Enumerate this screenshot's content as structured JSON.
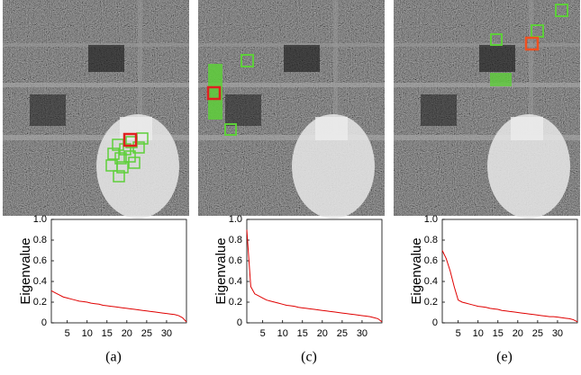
{
  "chart_data": [
    {
      "type": "line",
      "caption": "(a)",
      "y_label": "Eigenvalue",
      "color": "#e00000",
      "x": [
        1,
        2,
        3,
        4,
        5,
        6,
        7,
        8,
        9,
        10,
        11,
        12,
        13,
        14,
        15,
        16,
        17,
        18,
        19,
        20,
        21,
        22,
        23,
        24,
        25,
        26,
        27,
        28,
        29,
        30,
        31,
        32,
        33,
        34,
        35
      ],
      "values": [
        0.31,
        0.29,
        0.27,
        0.25,
        0.24,
        0.23,
        0.22,
        0.21,
        0.205,
        0.2,
        0.19,
        0.185,
        0.18,
        0.17,
        0.165,
        0.16,
        0.155,
        0.15,
        0.145,
        0.14,
        0.135,
        0.13,
        0.125,
        0.12,
        0.115,
        0.11,
        0.105,
        0.1,
        0.095,
        0.09,
        0.085,
        0.08,
        0.07,
        0.05,
        0.01
      ],
      "xlim": [
        1,
        35
      ],
      "xticks": [
        5,
        10,
        15,
        20,
        25,
        30
      ],
      "ylim": [
        0,
        1
      ],
      "yticks": [
        0,
        0.2,
        0.4,
        0.6,
        0.8,
        {
          "value": 1,
          "label": "1.0"
        }
      ]
    },
    {
      "type": "line",
      "caption": "(c)",
      "y_label": "Eigenvalue",
      "color": "#e00000",
      "x": [
        1,
        2,
        3,
        4,
        5,
        6,
        7,
        8,
        9,
        10,
        11,
        12,
        13,
        14,
        15,
        16,
        17,
        18,
        19,
        20,
        21,
        22,
        23,
        24,
        25,
        26,
        27,
        28,
        29,
        30,
        31,
        32,
        33,
        34,
        35
      ],
      "values": [
        0.9,
        0.35,
        0.28,
        0.26,
        0.24,
        0.22,
        0.21,
        0.2,
        0.19,
        0.18,
        0.17,
        0.165,
        0.16,
        0.15,
        0.145,
        0.14,
        0.135,
        0.13,
        0.125,
        0.12,
        0.115,
        0.11,
        0.105,
        0.1,
        0.095,
        0.09,
        0.085,
        0.08,
        0.075,
        0.07,
        0.065,
        0.06,
        0.05,
        0.04,
        0.01
      ],
      "xlim": [
        1,
        35
      ],
      "xticks": [
        5,
        10,
        15,
        20,
        25,
        30
      ],
      "ylim": [
        0,
        1
      ],
      "yticks": [
        0,
        0.2,
        0.4,
        0.6,
        0.8,
        {
          "value": 1,
          "label": "1.0"
        }
      ]
    },
    {
      "type": "line",
      "caption": "(e)",
      "y_label": "Eigenvalue",
      "color": "#e00000",
      "x": [
        1,
        2,
        3,
        4,
        5,
        6,
        7,
        8,
        9,
        10,
        11,
        12,
        13,
        14,
        15,
        16,
        17,
        18,
        19,
        20,
        21,
        22,
        23,
        24,
        25,
        26,
        27,
        28,
        29,
        30,
        31,
        32,
        33,
        34,
        35
      ],
      "values": [
        0.7,
        0.62,
        0.5,
        0.35,
        0.22,
        0.2,
        0.19,
        0.18,
        0.17,
        0.16,
        0.155,
        0.15,
        0.14,
        0.135,
        0.13,
        0.12,
        0.115,
        0.11,
        0.105,
        0.1,
        0.095,
        0.09,
        0.085,
        0.08,
        0.075,
        0.07,
        0.065,
        0.06,
        0.06,
        0.055,
        0.05,
        0.045,
        0.04,
        0.03,
        0.01
      ],
      "xlim": [
        1,
        35
      ],
      "xticks": [
        5,
        10,
        15,
        20,
        25,
        30
      ],
      "ylim": [
        0,
        1
      ],
      "yticks": [
        0,
        0.2,
        0.4,
        0.6,
        0.8,
        {
          "value": 1,
          "label": "1.0"
        }
      ]
    }
  ]
}
